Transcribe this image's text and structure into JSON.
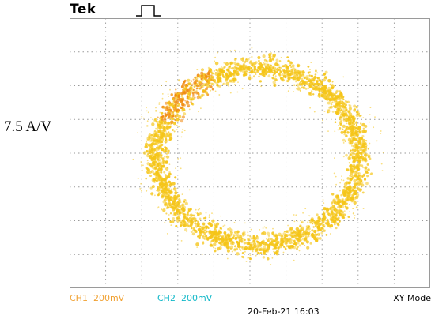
{
  "header": {
    "brand": "Tek",
    "trigger_icon": "pulse-icon"
  },
  "side_label": "7.5 A/V",
  "channels": [
    {
      "name": "CH1",
      "scale": "200mV",
      "color": "#f0a030"
    },
    {
      "name": "CH2",
      "scale": "200mV",
      "color": "#10b8c8"
    }
  ],
  "mode": "XY Mode",
  "timestamp": "20-Feb-21 16:03",
  "display": {
    "trace_color": "#f5c518",
    "hotspot_color": "#f08a10",
    "grid_color": "#9a9a9a",
    "grid_divisions": [
      10,
      8
    ]
  }
}
